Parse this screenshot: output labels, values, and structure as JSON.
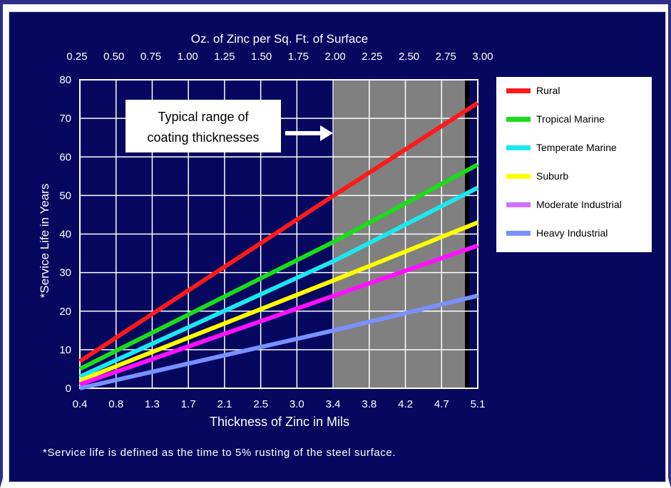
{
  "chart_data": {
    "type": "line",
    "title": "",
    "top_axis_label": "Oz. of Zinc per Sq. Ft. of Surface",
    "top_ticks": [
      "0.25",
      "0.50",
      "0.75",
      "1.00",
      "1.25",
      "1.50",
      "1.75",
      "2.00",
      "2.25",
      "2.50",
      "2.75",
      "3.00"
    ],
    "xlabel": "Thickness of Zinc in Mils",
    "x_ticks": [
      "0.4",
      "0.8",
      "1.3",
      "1.7",
      "2.1",
      "2.5",
      "3.0",
      "3.4",
      "3.8",
      "4.2",
      "4.7",
      "5.1"
    ],
    "ylabel": "*Service Life in Years",
    "y_ticks": [
      "0",
      "10",
      "20",
      "30",
      "40",
      "50",
      "60",
      "70",
      "80"
    ],
    "xlim": [
      0.4,
      5.1
    ],
    "ylim": [
      0,
      80
    ],
    "grid": true,
    "highlight_band": {
      "x_from": 3.4,
      "x_to": 4.95,
      "color": "#808080"
    },
    "annotation": {
      "line1": "Typical range of",
      "line2": "coating thicknesses"
    },
    "legend_position": "right",
    "series": [
      {
        "name": "Rural",
        "color": "#ff1a1a",
        "x": [
          0.4,
          3.4,
          5.1
        ],
        "y": [
          7,
          50,
          74
        ]
      },
      {
        "name": "Tropical Marine",
        "color": "#1adc1a",
        "x": [
          0.4,
          3.4,
          5.1
        ],
        "y": [
          5,
          38,
          58
        ]
      },
      {
        "name": "Temperate Marine",
        "color": "#1ae8f0",
        "x": [
          0.4,
          3.4,
          5.1
        ],
        "y": [
          3,
          33,
          52
        ]
      },
      {
        "name": "Suburb",
        "color": "#ffff00",
        "x": [
          0.4,
          3.4,
          5.1
        ],
        "y": [
          2,
          28,
          43
        ]
      },
      {
        "name": "Moderate Industrial",
        "color": "#ff10ff",
        "x": [
          0.4,
          3.4,
          5.1
        ],
        "y": [
          1,
          24,
          37
        ]
      },
      {
        "name": "Heavy Industrial",
        "color": "#7a90ff",
        "x": [
          0.4,
          3.4,
          5.1
        ],
        "y": [
          0,
          15,
          24
        ]
      }
    ],
    "legend_swatch_colors": [
      "#ff1a1a",
      "#1adc1a",
      "#1ae8f0",
      "#ffff00",
      "#d070ff",
      "#7a90ff"
    ],
    "footnote": "*Service life is defined as the time to 5% rusting of the steel surface."
  },
  "colors": {
    "background": "#05085e",
    "grid": "#ffffff",
    "axis_text": "#ffffff"
  }
}
